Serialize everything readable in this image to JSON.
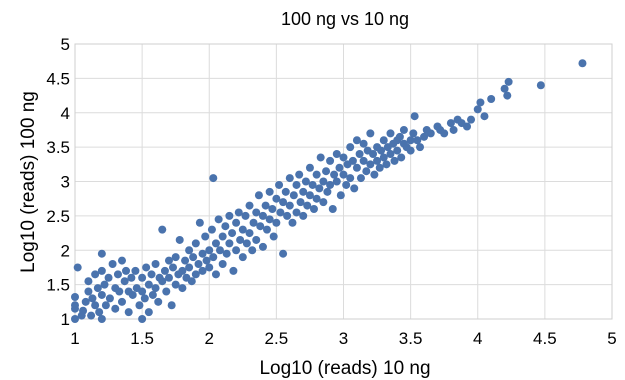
{
  "chart_data": {
    "type": "scatter",
    "title": "100 ng vs 10 ng",
    "xlabel": "Log10 (reads) 10 ng",
    "ylabel": "Log10 (reads) 100 ng",
    "xlim": [
      1,
      5
    ],
    "ylim": [
      1,
      5
    ],
    "xticks": [
      "1",
      "1.5",
      "2",
      "2.5",
      "3",
      "3.5",
      "4",
      "4.5",
      "5"
    ],
    "yticks": [
      "1",
      "1.5",
      "2",
      "2.5",
      "3",
      "3.5",
      "4",
      "4.5",
      "5"
    ],
    "grid": true,
    "legend": "none",
    "point_color": "#4a73ad",
    "points": [
      [
        1.0,
        1.0
      ],
      [
        1.0,
        1.15
      ],
      [
        1.0,
        1.2
      ],
      [
        1.0,
        1.32
      ],
      [
        1.02,
        1.75
      ],
      [
        1.05,
        1.05
      ],
      [
        1.06,
        1.12
      ],
      [
        1.08,
        1.25
      ],
      [
        1.1,
        1.4
      ],
      [
        1.1,
        1.55
      ],
      [
        1.12,
        1.05
      ],
      [
        1.13,
        1.3
      ],
      [
        1.15,
        1.65
      ],
      [
        1.15,
        1.2
      ],
      [
        1.17,
        1.45
      ],
      [
        1.18,
        1.1
      ],
      [
        1.2,
        1.0
      ],
      [
        1.2,
        1.35
      ],
      [
        1.2,
        1.7
      ],
      [
        1.2,
        1.95
      ],
      [
        1.22,
        1.5
      ],
      [
        1.23,
        1.2
      ],
      [
        1.25,
        1.6
      ],
      [
        1.26,
        1.3
      ],
      [
        1.28,
        1.8
      ],
      [
        1.3,
        1.45
      ],
      [
        1.3,
        1.15
      ],
      [
        1.32,
        1.65
      ],
      [
        1.33,
        1.4
      ],
      [
        1.35,
        1.85
      ],
      [
        1.35,
        1.25
      ],
      [
        1.37,
        1.55
      ],
      [
        1.38,
        1.7
      ],
      [
        1.4,
        1.4
      ],
      [
        1.4,
        1.1
      ],
      [
        1.42,
        1.6
      ],
      [
        1.43,
        1.35
      ],
      [
        1.45,
        1.7
      ],
      [
        1.46,
        1.45
      ],
      [
        1.48,
        1.2
      ],
      [
        1.5,
        1.0
      ],
      [
        1.5,
        1.6
      ],
      [
        1.5,
        1.4
      ],
      [
        1.52,
        1.3
      ],
      [
        1.53,
        1.75
      ],
      [
        1.55,
        1.5
      ],
      [
        1.55,
        1.1
      ],
      [
        1.57,
        1.65
      ],
      [
        1.58,
        1.35
      ],
      [
        1.6,
        1.8
      ],
      [
        1.6,
        1.45
      ],
      [
        1.62,
        1.25
      ],
      [
        1.63,
        1.6
      ],
      [
        1.65,
        2.3
      ],
      [
        1.65,
        1.55
      ],
      [
        1.67,
        1.7
      ],
      [
        1.68,
        1.4
      ],
      [
        1.7,
        1.85
      ],
      [
        1.7,
        1.6
      ],
      [
        1.72,
        1.2
      ],
      [
        1.73,
        1.75
      ],
      [
        1.75,
        1.5
      ],
      [
        1.75,
        1.9
      ],
      [
        1.77,
        1.65
      ],
      [
        1.78,
        2.15
      ],
      [
        1.8,
        1.7
      ],
      [
        1.8,
        1.45
      ],
      [
        1.82,
        1.85
      ],
      [
        1.83,
        1.6
      ],
      [
        1.85,
        2.0
      ],
      [
        1.85,
        1.75
      ],
      [
        1.87,
        1.55
      ],
      [
        1.88,
        1.9
      ],
      [
        1.9,
        2.1
      ],
      [
        1.9,
        1.65
      ],
      [
        1.92,
        1.8
      ],
      [
        1.93,
        2.4
      ],
      [
        1.95,
        1.95
      ],
      [
        1.95,
        1.7
      ],
      [
        1.97,
        2.2
      ],
      [
        1.98,
        1.85
      ],
      [
        2.0,
        2.0
      ],
      [
        2.0,
        1.75
      ],
      [
        2.02,
        2.3
      ],
      [
        2.03,
        1.9
      ],
      [
        2.03,
        3.05
      ],
      [
        2.05,
        2.1
      ],
      [
        2.05,
        1.65
      ],
      [
        2.07,
        2.45
      ],
      [
        2.08,
        2.0
      ],
      [
        2.1,
        2.2
      ],
      [
        2.1,
        1.8
      ],
      [
        2.12,
        2.35
      ],
      [
        2.13,
        1.95
      ],
      [
        2.15,
        2.5
      ],
      [
        2.15,
        2.1
      ],
      [
        2.17,
        2.25
      ],
      [
        2.18,
        1.7
      ],
      [
        2.2,
        2.4
      ],
      [
        2.2,
        2.0
      ],
      [
        2.22,
        2.55
      ],
      [
        2.23,
        2.15
      ],
      [
        2.25,
        2.3
      ],
      [
        2.25,
        1.9
      ],
      [
        2.27,
        2.5
      ],
      [
        2.28,
        2.1
      ],
      [
        2.3,
        2.65
      ],
      [
        2.3,
        2.25
      ],
      [
        2.32,
        2.0
      ],
      [
        2.33,
        2.4
      ],
      [
        2.35,
        2.55
      ],
      [
        2.35,
        2.15
      ],
      [
        2.37,
        2.8
      ],
      [
        2.38,
        2.35
      ],
      [
        2.4,
        2.5
      ],
      [
        2.4,
        2.05
      ],
      [
        2.42,
        2.65
      ],
      [
        2.43,
        2.3
      ],
      [
        2.45,
        2.85
      ],
      [
        2.45,
        2.45
      ],
      [
        2.47,
        2.6
      ],
      [
        2.48,
        2.2
      ],
      [
        2.5,
        2.75
      ],
      [
        2.5,
        2.4
      ],
      [
        2.52,
        2.95
      ],
      [
        2.53,
        2.55
      ],
      [
        2.55,
        2.7
      ],
      [
        2.55,
        1.95
      ],
      [
        2.57,
        2.85
      ],
      [
        2.58,
        2.5
      ],
      [
        2.6,
        3.05
      ],
      [
        2.6,
        2.65
      ],
      [
        2.62,
        2.4
      ],
      [
        2.63,
        2.8
      ],
      [
        2.65,
        2.95
      ],
      [
        2.65,
        2.55
      ],
      [
        2.67,
        3.1
      ],
      [
        2.68,
        2.7
      ],
      [
        2.7,
        2.85
      ],
      [
        2.7,
        2.5
      ],
      [
        2.72,
        3.0
      ],
      [
        2.73,
        2.65
      ],
      [
        2.75,
        2.8
      ],
      [
        2.75,
        3.2
      ],
      [
        2.77,
        2.95
      ],
      [
        2.78,
        2.6
      ],
      [
        2.8,
        3.1
      ],
      [
        2.8,
        2.75
      ],
      [
        2.82,
        2.9
      ],
      [
        2.83,
        3.35
      ],
      [
        2.85,
        3.0
      ],
      [
        2.85,
        2.7
      ],
      [
        2.87,
        3.15
      ],
      [
        2.88,
        2.85
      ],
      [
        2.9,
        3.3
      ],
      [
        2.9,
        2.95
      ],
      [
        2.92,
        2.6
      ],
      [
        2.93,
        3.1
      ],
      [
        2.95,
        3.4
      ],
      [
        2.95,
        3.0
      ],
      [
        2.97,
        3.2
      ],
      [
        2.98,
        2.8
      ],
      [
        3.0,
        3.1
      ],
      [
        3.0,
        3.35
      ],
      [
        3.02,
        2.95
      ],
      [
        3.03,
        3.25
      ],
      [
        3.05,
        3.5
      ],
      [
        3.05,
        3.05
      ],
      [
        3.07,
        3.3
      ],
      [
        3.08,
        2.9
      ],
      [
        3.1,
        3.2
      ],
      [
        3.1,
        3.6
      ],
      [
        3.12,
        3.4
      ],
      [
        3.13,
        3.05
      ],
      [
        3.15,
        3.3
      ],
      [
        3.15,
        3.55
      ],
      [
        3.17,
        3.15
      ],
      [
        3.18,
        3.45
      ],
      [
        3.2,
        3.25
      ],
      [
        3.2,
        3.7
      ],
      [
        3.22,
        3.4
      ],
      [
        3.23,
        3.1
      ],
      [
        3.25,
        3.5
      ],
      [
        3.25,
        3.3
      ],
      [
        3.27,
        3.2
      ],
      [
        3.28,
        3.45
      ],
      [
        3.3,
        3.6
      ],
      [
        3.3,
        3.35
      ],
      [
        3.32,
        3.25
      ],
      [
        3.33,
        3.5
      ],
      [
        3.35,
        3.4
      ],
      [
        3.35,
        3.7
      ],
      [
        3.37,
        3.55
      ],
      [
        3.38,
        3.3
      ],
      [
        3.4,
        3.6
      ],
      [
        3.4,
        3.45
      ],
      [
        3.42,
        3.65
      ],
      [
        3.43,
        3.35
      ],
      [
        3.45,
        3.55
      ],
      [
        3.45,
        3.75
      ],
      [
        3.47,
        3.5
      ],
      [
        3.5,
        3.6
      ],
      [
        3.5,
        3.45
      ],
      [
        3.52,
        3.7
      ],
      [
        3.53,
        3.95
      ],
      [
        3.55,
        3.6
      ],
      [
        3.57,
        3.5
      ],
      [
        3.6,
        3.65
      ],
      [
        3.62,
        3.75
      ],
      [
        3.65,
        3.7
      ],
      [
        3.7,
        3.8
      ],
      [
        3.72,
        3.75
      ],
      [
        3.75,
        3.7
      ],
      [
        3.8,
        3.85
      ],
      [
        3.82,
        3.75
      ],
      [
        3.85,
        3.9
      ],
      [
        3.88,
        3.85
      ],
      [
        3.92,
        3.8
      ],
      [
        3.95,
        3.9
      ],
      [
        4.0,
        4.05
      ],
      [
        4.02,
        4.15
      ],
      [
        4.05,
        3.95
      ],
      [
        4.1,
        4.2
      ],
      [
        4.2,
        4.35
      ],
      [
        4.22,
        4.25
      ],
      [
        4.23,
        4.45
      ],
      [
        4.47,
        4.4
      ],
      [
        4.78,
        4.72
      ]
    ]
  }
}
